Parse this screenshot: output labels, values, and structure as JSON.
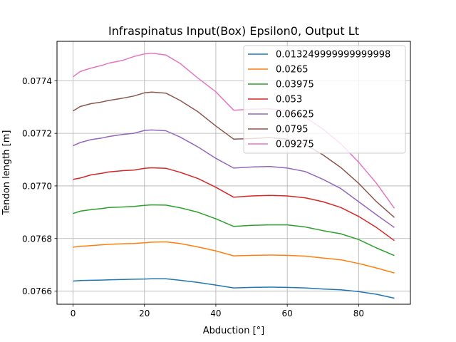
{
  "chart_data": {
    "type": "line",
    "title": "Infraspinatus Input(Box) Epsilon0, Output Lt",
    "xlabel": "Abduction [°]",
    "ylabel": "Tendon length [m]",
    "xlim": [
      -4.5,
      94.5
    ],
    "ylim": [
      0.07655,
      0.07755
    ],
    "xticks": [
      0,
      20,
      40,
      60,
      80
    ],
    "yticks": [
      0.0766,
      0.0768,
      0.077,
      0.0772,
      0.0774
    ],
    "ytick_labels": [
      "0.0766",
      "0.0768",
      "0.0770",
      "0.0772",
      "0.0774"
    ],
    "grid": true,
    "legend_position": "top-right",
    "x": [
      0,
      2,
      5,
      8,
      10,
      14,
      17,
      20,
      22,
      26,
      30,
      35,
      40,
      45,
      50,
      55,
      60,
      65,
      70,
      75,
      80,
      85,
      90
    ],
    "series": [
      {
        "name": "0.013249999999999998",
        "color": "#1f77b4",
        "values": [
          0.076638,
          0.07664,
          0.076641,
          0.076642,
          0.076643,
          0.076644,
          0.076645,
          0.076646,
          0.076647,
          0.076647,
          0.076641,
          0.076633,
          0.076623,
          0.076612,
          0.076614,
          0.076615,
          0.076614,
          0.076612,
          0.076608,
          0.076605,
          0.076598,
          0.076588,
          0.076573
        ]
      },
      {
        "name": "0.0265",
        "color": "#ff7f0e",
        "values": [
          0.076767,
          0.07677,
          0.076773,
          0.076776,
          0.076778,
          0.07678,
          0.076781,
          0.076784,
          0.076786,
          0.076787,
          0.076781,
          0.076768,
          0.076753,
          0.076734,
          0.076736,
          0.076737,
          0.076736,
          0.076733,
          0.076726,
          0.076719,
          0.076705,
          0.076688,
          0.076669
        ]
      },
      {
        "name": "0.03975",
        "color": "#2ca02c",
        "values": [
          0.076895,
          0.076904,
          0.07691,
          0.076914,
          0.076918,
          0.07692,
          0.076922,
          0.076926,
          0.076928,
          0.076927,
          0.076917,
          0.0769,
          0.076875,
          0.076846,
          0.07685,
          0.076852,
          0.076852,
          0.076844,
          0.07683,
          0.076818,
          0.076796,
          0.076764,
          0.076735
        ]
      },
      {
        "name": "0.053",
        "color": "#d62728",
        "values": [
          0.077025,
          0.07703,
          0.077042,
          0.077048,
          0.077053,
          0.077058,
          0.07706,
          0.077067,
          0.077069,
          0.077067,
          0.077052,
          0.077028,
          0.076995,
          0.076957,
          0.076962,
          0.076964,
          0.076962,
          0.076955,
          0.07694,
          0.076918,
          0.076884,
          0.076842,
          0.076792
        ]
      },
      {
        "name": "0.06625",
        "color": "#9467bd",
        "values": [
          0.077153,
          0.077165,
          0.077176,
          0.077182,
          0.077188,
          0.077196,
          0.0772,
          0.077211,
          0.077213,
          0.07721,
          0.077186,
          0.077148,
          0.077105,
          0.077068,
          0.077072,
          0.077074,
          0.077068,
          0.077055,
          0.077025,
          0.07699,
          0.07694,
          0.07689,
          0.076842
        ]
      },
      {
        "name": "0.0795",
        "color": "#8c564b",
        "values": [
          0.077285,
          0.077302,
          0.077313,
          0.077319,
          0.077325,
          0.077334,
          0.077342,
          0.077354,
          0.077357,
          0.077353,
          0.077325,
          0.077282,
          0.077228,
          0.077178,
          0.07718,
          0.077184,
          0.077178,
          0.077158,
          0.077118,
          0.07707,
          0.07701,
          0.07694,
          0.07688
        ]
      },
      {
        "name": "0.09275",
        "color": "#e377c2",
        "values": [
          0.077415,
          0.077435,
          0.077448,
          0.077458,
          0.077467,
          0.077478,
          0.077492,
          0.077502,
          0.077505,
          0.077498,
          0.077466,
          0.07741,
          0.077358,
          0.077288,
          0.077292,
          0.077293,
          0.077286,
          0.077262,
          0.077216,
          0.07716,
          0.07709,
          0.07701,
          0.076915
        ]
      }
    ]
  }
}
